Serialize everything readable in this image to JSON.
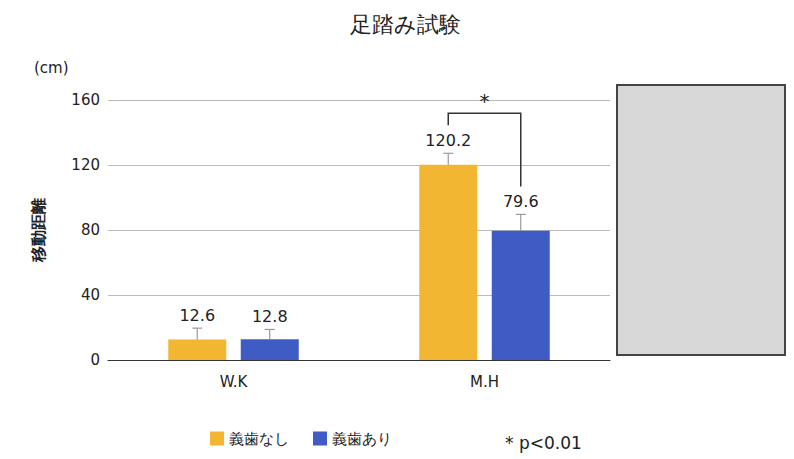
{
  "chart_data": {
    "type": "bar",
    "title": "足踏み試験",
    "ylabel": "移動距離",
    "yunit": "(cm)",
    "categories": [
      "W.K",
      "M.H"
    ],
    "series": [
      {
        "name": "義歯なし",
        "color": "#f2b632",
        "values": [
          12.6,
          120.2
        ],
        "errors": [
          7,
          7
        ]
      },
      {
        "name": "義歯あり",
        "color": "#3f5cc4",
        "values": [
          12.8,
          79.6
        ],
        "errors": [
          6,
          10
        ]
      }
    ],
    "ylim": [
      0,
      160
    ],
    "yticks": [
      0,
      40,
      80,
      120,
      160
    ],
    "grid": true,
    "legend": "bottom",
    "data_labels": true,
    "significance": [
      {
        "category": "M.H",
        "pair": [
          "義歯なし",
          "義歯あり"
        ],
        "text": "*"
      }
    ],
    "note": "* p<0.01"
  }
}
